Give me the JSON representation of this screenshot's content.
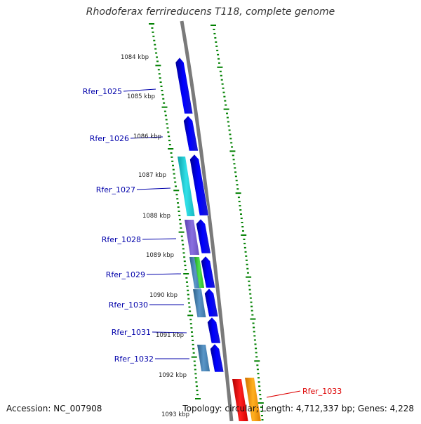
{
  "header": {
    "title": "Rhodoferax ferrireducens T118, complete genome"
  },
  "footer": {
    "accession": "Accession: NC_007908",
    "summary": "Topology: circular; Length: 4,712,337 bp; Genes: 4,228"
  },
  "scale": {
    "ticks": [
      "1084 kbp",
      "1085 kbp",
      "1086 kbp",
      "1087 kbp",
      "1088 kbp",
      "1089 kbp",
      "1090 kbp",
      "1091 kbp",
      "1092 kbp",
      "1093 kbp"
    ]
  },
  "genes": [
    {
      "id": "Rfer_1025",
      "color": "#0000ee"
    },
    {
      "id": "Rfer_1026",
      "color": "#0000ee"
    },
    {
      "id": "Rfer_1027",
      "color": "#0000ee"
    },
    {
      "id": "Rfer_1028",
      "color": "#0000ee"
    },
    {
      "id": "Rfer_1029",
      "color": "#0000ee"
    },
    {
      "id": "Rfer_1030",
      "color": "#0000ee"
    },
    {
      "id": "Rfer_1031",
      "color": "#0000ee"
    },
    {
      "id": "Rfer_1032",
      "color": "#0000ee"
    },
    {
      "id": "Rfer_1033",
      "color": "#e00000"
    }
  ],
  "colors": {
    "backbone": "#808080",
    "scale_ticks": "#008000",
    "cds_forward": "#0000ee",
    "cog_cyan": "#22c8d0",
    "cog_purple": "#7b5fd0",
    "cog_steelblue": "#4682b4",
    "cog_green": "#33cc33",
    "highlight_red": "#ee0000",
    "highlight_orange": "#ff9900"
  }
}
